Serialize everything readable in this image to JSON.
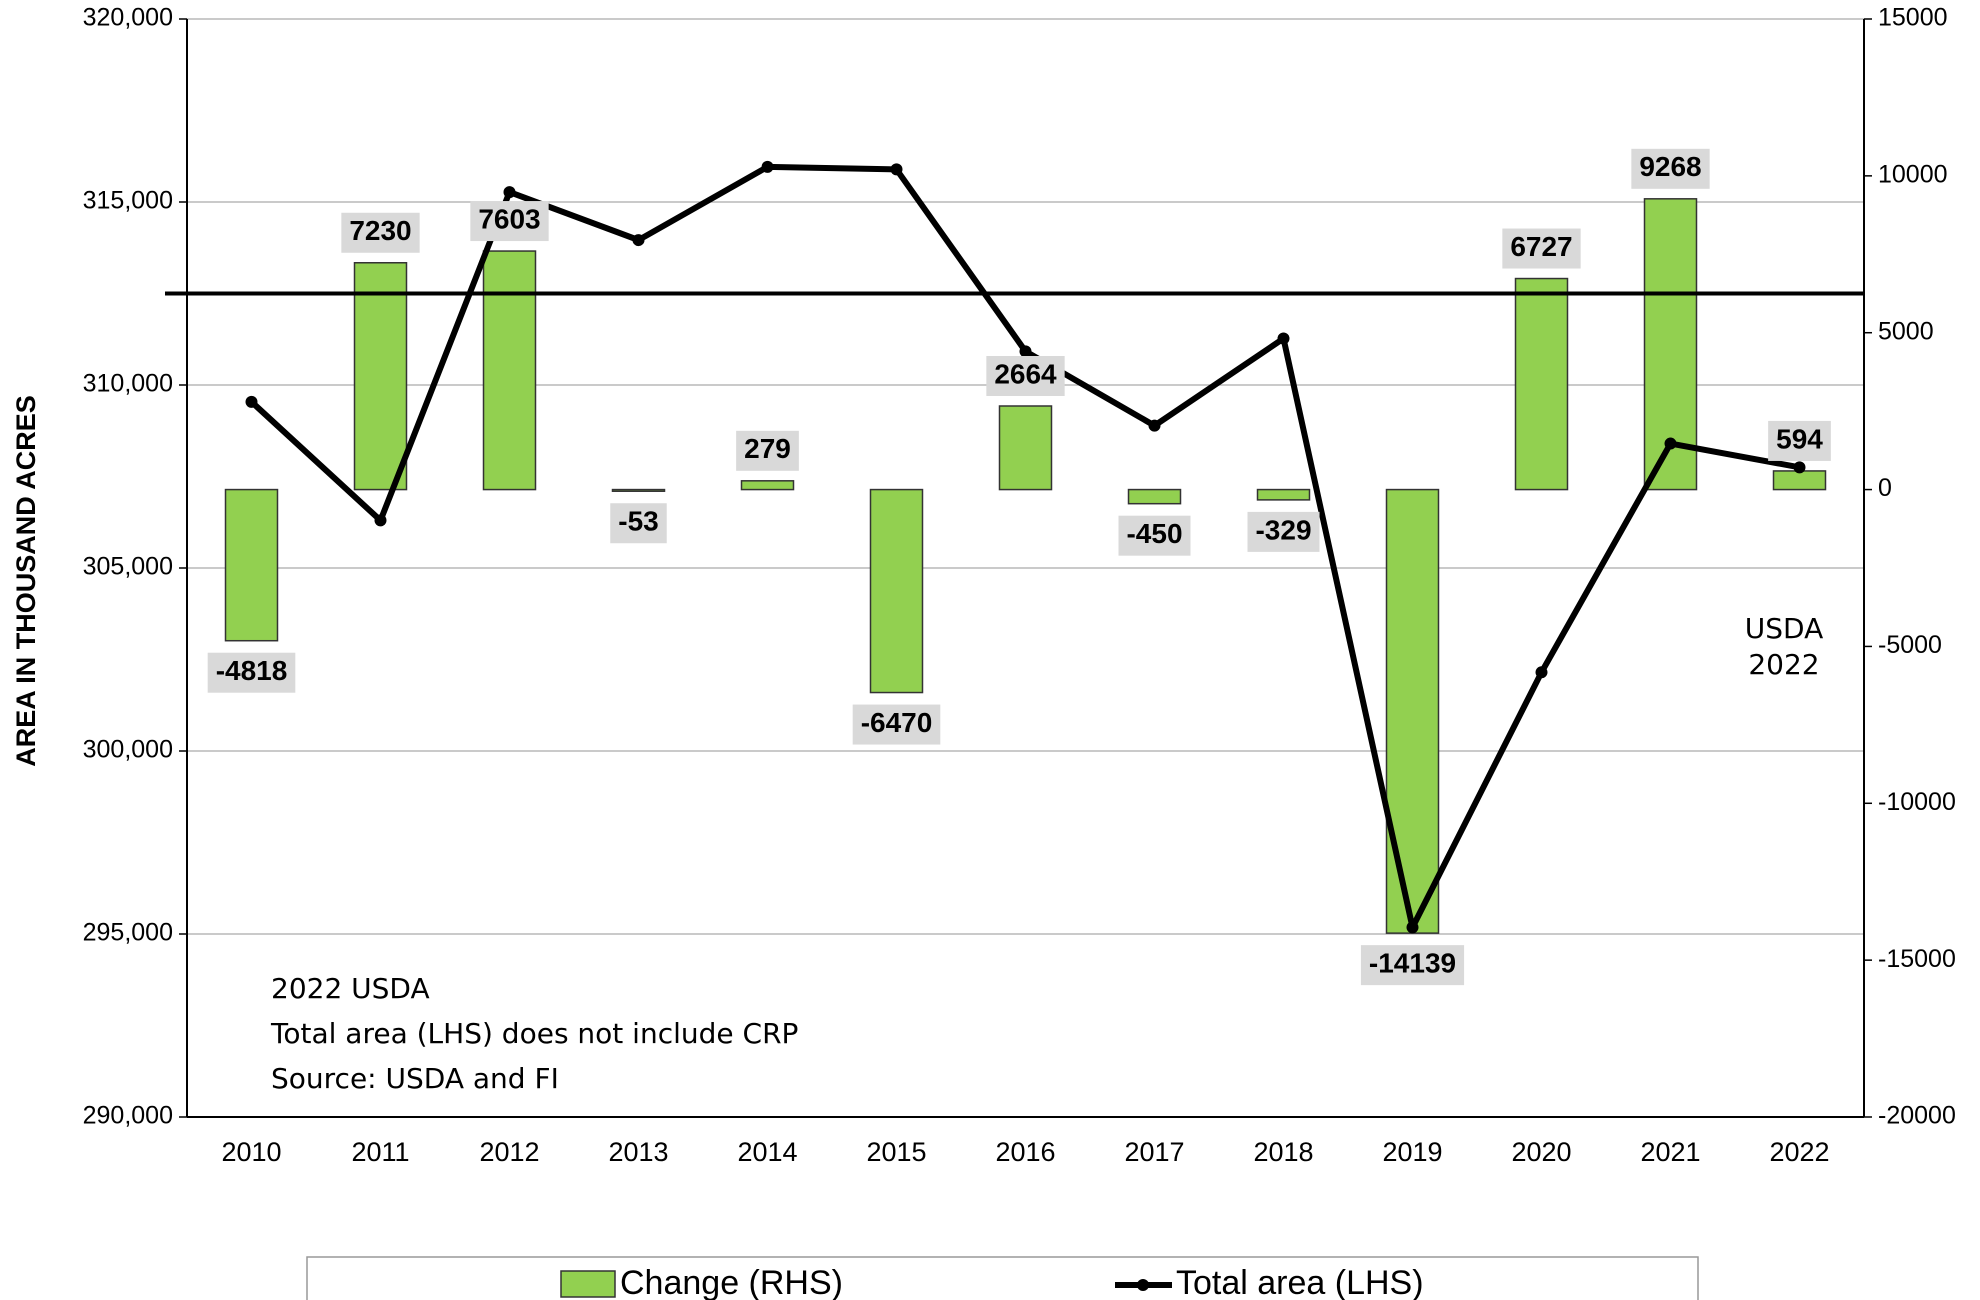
{
  "chart_data": {
    "type": "bar",
    "y_label": "AREA IN THOUSAND ACRES",
    "categories": [
      "2010",
      "2011",
      "2012",
      "2013",
      "2014",
      "2015",
      "2016",
      "2017",
      "2018",
      "2019",
      "2020",
      "2021",
      "2022"
    ],
    "series": [
      {
        "name": "Change (RHS)",
        "type": "bar",
        "axis": "y2",
        "color": "#92d050",
        "values": [
          -4818,
          7230,
          7603,
          -53,
          279,
          -6470,
          2664,
          -450,
          -329,
          -14139,
          6727,
          9268,
          594
        ]
      },
      {
        "name": "Total area (LHS)",
        "type": "line",
        "color": "#000000",
        "values": [
          309540,
          306300,
          315270,
          313960,
          315960,
          315890,
          310920,
          308890,
          311270,
          295180,
          302150,
          308400,
          307750
        ]
      }
    ],
    "reference_line": 312500,
    "ylim": [
      290000,
      320000
    ],
    "yticks": [
      {
        "value": 290000,
        "label": "290,000"
      },
      {
        "value": 295000,
        "label": "295,000"
      },
      {
        "value": 300000,
        "label": "300,000"
      },
      {
        "value": 305000,
        "label": "305,000"
      },
      {
        "value": 310000,
        "label": "310,000"
      },
      {
        "value": 315000,
        "label": "315,000"
      },
      {
        "value": 320000,
        "label": "320,000"
      }
    ],
    "y2lim": [
      -20000,
      15000
    ],
    "y2ticks": [
      -20000,
      -15000,
      -10000,
      -5000,
      0,
      5000,
      10000,
      15000
    ],
    "grid": true,
    "annotations": [
      "USDA",
      "2022",
      "2022 USDA",
      "Total area (LHS) does not include CRP",
      "Source: USDA and FI"
    ]
  }
}
